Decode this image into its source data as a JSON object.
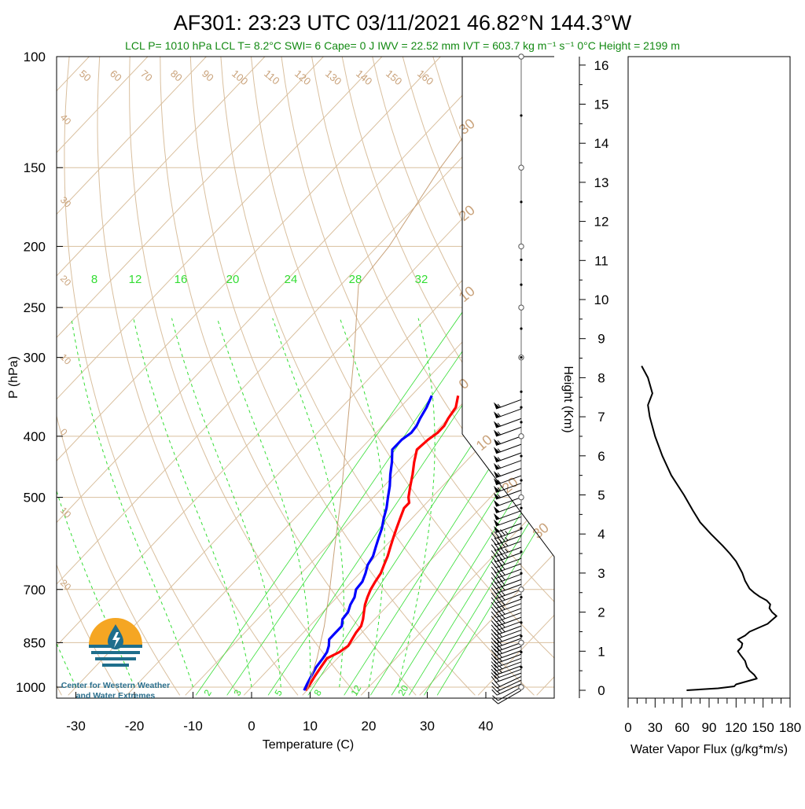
{
  "title": "AF301: 23:23 UTC 03/11/2021  46.82°N 144.3°W",
  "info_line": "LCL P= 1010 hPa  LCL T= 8.2°C  SWI= 6  Cape= 0 J  IWV = 22.52 mm  IVT = 603.7 kg m⁻¹ s⁻¹  0°C Height = 2199 m",
  "logo": {
    "line1": "Center for Western Weather",
    "line2": "and Water Extremes",
    "colors": {
      "orange": "#f5a623",
      "teal": "#1f6e8c"
    }
  },
  "colors": {
    "temperature": "#ff0000",
    "dewpoint": "#0000ff",
    "isotherms_and_adiabats": "#d9bf9e",
    "mixing_ratio": "#33dd33",
    "parcel": "#c9a27a",
    "flux": "#000000"
  },
  "chart_data": [
    {
      "type": "line",
      "subtype": "skew-T log-p",
      "xlabel": "Temperature (C)",
      "ylabel": "P (hPa)",
      "right_label": "Height (Km)",
      "x_ticks": [
        -30,
        -20,
        -10,
        0,
        10,
        20,
        30,
        40
      ],
      "xlim": [
        -33,
        45
      ],
      "y_ticks": [
        100,
        150,
        200,
        250,
        300,
        400,
        500,
        700,
        850,
        1000
      ],
      "ylim": [
        100,
        1030
      ],
      "y_scale": "log",
      "height_ticks_km": [
        0,
        1,
        2,
        3,
        4,
        5,
        6,
        7,
        8,
        9,
        10,
        11,
        12,
        13,
        14,
        15,
        16
      ],
      "dry_adiabat_labels": [
        "50",
        "60",
        "70",
        "80",
        "90",
        "100",
        "110",
        "120",
        "130",
        "140",
        "150",
        "160"
      ],
      "isotherm_labels_left": [
        "40",
        "30",
        "20",
        "10",
        "0",
        "10",
        "20"
      ],
      "isotherm_labels_right": [
        "30",
        "20",
        "10",
        "0",
        "10",
        "20",
        "30"
      ],
      "mixing_ratio_labels_top": [
        "8",
        "12",
        "16",
        "20",
        "24",
        "28",
        "32"
      ],
      "mixing_ratio_labels_bottom": [
        "2",
        "3",
        "5",
        "8",
        "12",
        "20"
      ],
      "series": [
        {
          "name": "Temperature",
          "points": [
            {
              "p": 1012,
              "t": 9.8
            },
            {
              "p": 990,
              "t": 9.5
            },
            {
              "p": 960,
              "t": 9.0
            },
            {
              "p": 930,
              "t": 8.6
            },
            {
              "p": 900,
              "t": 8.2
            },
            {
              "p": 880,
              "t": 9.3
            },
            {
              "p": 860,
              "t": 9.8
            },
            {
              "p": 840,
              "t": 9.4
            },
            {
              "p": 820,
              "t": 9.0
            },
            {
              "p": 800,
              "t": 8.8
            },
            {
              "p": 780,
              "t": 8.0
            },
            {
              "p": 760,
              "t": 7.0
            },
            {
              "p": 740,
              "t": 6.0
            },
            {
              "p": 720,
              "t": 5.2
            },
            {
              "p": 700,
              "t": 4.5
            },
            {
              "p": 680,
              "t": 4.0
            },
            {
              "p": 660,
              "t": 3.6
            },
            {
              "p": 640,
              "t": 2.8
            },
            {
              "p": 620,
              "t": 2.0
            },
            {
              "p": 600,
              "t": 1.0
            },
            {
              "p": 580,
              "t": 0.0
            },
            {
              "p": 560,
              "t": -1.0
            },
            {
              "p": 540,
              "t": -2.0
            },
            {
              "p": 520,
              "t": -3.0
            },
            {
              "p": 510,
              "t": -3.0
            },
            {
              "p": 500,
              "t": -4.0
            },
            {
              "p": 480,
              "t": -5.5
            },
            {
              "p": 460,
              "t": -7.0
            },
            {
              "p": 440,
              "t": -8.7
            },
            {
              "p": 420,
              "t": -10.3
            },
            {
              "p": 405,
              "t": -10.0
            },
            {
              "p": 395,
              "t": -9.5
            },
            {
              "p": 385,
              "t": -9.5
            },
            {
              "p": 375,
              "t": -10.0
            },
            {
              "p": 360,
              "t": -10.5
            },
            {
              "p": 345,
              "t": -12.0
            }
          ]
        },
        {
          "name": "Dewpoint",
          "points": [
            {
              "p": 1012,
              "t": 9.5
            },
            {
              "p": 990,
              "t": 9.0
            },
            {
              "p": 960,
              "t": 8.4
            },
            {
              "p": 930,
              "t": 7.8
            },
            {
              "p": 900,
              "t": 7.5
            },
            {
              "p": 880,
              "t": 7.2
            },
            {
              "p": 860,
              "t": 6.5
            },
            {
              "p": 840,
              "t": 5.5
            },
            {
              "p": 820,
              "t": 5.5
            },
            {
              "p": 800,
              "t": 5.5
            },
            {
              "p": 780,
              "t": 4.5
            },
            {
              "p": 760,
              "t": 4.3
            },
            {
              "p": 740,
              "t": 3.5
            },
            {
              "p": 720,
              "t": 3.0
            },
            {
              "p": 700,
              "t": 2.0
            },
            {
              "p": 680,
              "t": 1.8
            },
            {
              "p": 660,
              "t": 1.0
            },
            {
              "p": 640,
              "t": 0.0
            },
            {
              "p": 620,
              "t": -0.5
            },
            {
              "p": 600,
              "t": -1.5
            },
            {
              "p": 580,
              "t": -2.5
            },
            {
              "p": 560,
              "t": -3.5
            },
            {
              "p": 540,
              "t": -4.8
            },
            {
              "p": 520,
              "t": -6.0
            },
            {
              "p": 500,
              "t": -7.5
            },
            {
              "p": 480,
              "t": -9.0
            },
            {
              "p": 460,
              "t": -10.8
            },
            {
              "p": 440,
              "t": -12.5
            },
            {
              "p": 420,
              "t": -14.5
            },
            {
              "p": 405,
              "t": -14.5
            },
            {
              "p": 395,
              "t": -14.0
            },
            {
              "p": 385,
              "t": -14.2
            },
            {
              "p": 375,
              "t": -14.8
            },
            {
              "p": 360,
              "t": -15.5
            },
            {
              "p": 345,
              "t": -16.5
            }
          ]
        },
        {
          "name": "Parcel",
          "points": [
            {
              "p": 1012,
              "t": 10.0
            },
            {
              "p": 900,
              "t": 6.5
            },
            {
              "p": 800,
              "t": 2.5
            },
            {
              "p": 700,
              "t": -2.5
            },
            {
              "p": 600,
              "t": -8.5
            },
            {
              "p": 500,
              "t": -15.5
            },
            {
              "p": 400,
              "t": -24.5
            },
            {
              "p": 300,
              "t": -36.0
            },
            {
              "p": 230,
              "t": -47.0
            },
            {
              "p": 200,
              "t": -48.0
            },
            {
              "p": 150,
              "t": -52.0
            },
            {
              "p": 100,
              "t": -56.0
            }
          ]
        }
      ],
      "wind_barbs": {
        "levels_hpa": [
          1012,
          1000,
          988,
          975,
          962,
          950,
          937,
          925,
          912,
          900,
          887,
          875,
          862,
          850,
          837,
          825,
          812,
          800,
          787,
          775,
          762,
          750,
          737,
          725,
          712,
          700,
          687,
          675,
          662,
          650,
          637,
          625,
          612,
          600,
          587,
          575,
          562,
          550,
          537,
          525,
          512,
          500,
          487,
          475,
          462,
          450,
          437,
          425,
          412,
          400,
          387,
          375,
          362,
          350
        ],
        "speed_knots": [
          10,
          10,
          15,
          15,
          20,
          20,
          20,
          25,
          25,
          25,
          25,
          30,
          30,
          30,
          30,
          30,
          30,
          35,
          35,
          35,
          35,
          35,
          35,
          35,
          35,
          35,
          40,
          40,
          40,
          40,
          40,
          40,
          45,
          45,
          45,
          45,
          45,
          50,
          50,
          50,
          50,
          50,
          55,
          55,
          55,
          55,
          55,
          55,
          55,
          55,
          55,
          55,
          55,
          55
        ],
        "from_direction_deg": [
          240,
          240,
          245,
          245,
          245,
          250,
          250,
          250,
          250,
          250,
          250,
          250,
          250,
          250,
          250,
          250,
          250,
          250,
          250,
          250,
          250,
          250,
          250,
          250,
          250,
          250,
          250,
          250,
          250,
          250,
          250,
          250,
          250,
          250,
          250,
          250,
          250,
          250,
          250,
          250,
          250,
          250,
          250,
          250,
          250,
          250,
          250,
          250,
          250,
          250,
          250,
          250,
          250,
          250
        ]
      }
    },
    {
      "type": "line",
      "xlabel": "Water Vapor Flux (g/kg*m/s)",
      "ylabel": "",
      "x_ticks": [
        0,
        30,
        60,
        90,
        120,
        150,
        180
      ],
      "xlim": [
        0,
        180
      ],
      "ylim_km": [
        -0.1,
        16.5
      ],
      "series": [
        {
          "name": "Water Vapor Flux",
          "points": [
            {
              "km": 0.0,
              "flux": 65
            },
            {
              "km": 0.05,
              "flux": 100
            },
            {
              "km": 0.1,
              "flux": 118
            },
            {
              "km": 0.15,
              "flux": 120
            },
            {
              "km": 0.3,
              "flux": 143
            },
            {
              "km": 0.4,
              "flux": 140
            },
            {
              "km": 0.5,
              "flux": 135
            },
            {
              "km": 0.6,
              "flux": 132
            },
            {
              "km": 0.75,
              "flux": 130
            },
            {
              "km": 0.9,
              "flux": 125
            },
            {
              "km": 1.0,
              "flux": 122
            },
            {
              "km": 1.1,
              "flux": 126
            },
            {
              "km": 1.2,
              "flux": 127
            },
            {
              "km": 1.3,
              "flux": 122
            },
            {
              "km": 1.4,
              "flux": 130
            },
            {
              "km": 1.5,
              "flux": 135
            },
            {
              "km": 1.6,
              "flux": 145
            },
            {
              "km": 1.7,
              "flux": 155
            },
            {
              "km": 1.8,
              "flux": 160
            },
            {
              "km": 1.9,
              "flux": 165
            },
            {
              "km": 2.0,
              "flux": 160
            },
            {
              "km": 2.1,
              "flux": 157
            },
            {
              "km": 2.2,
              "flux": 158
            },
            {
              "km": 2.3,
              "flux": 154
            },
            {
              "km": 2.4,
              "flux": 146
            },
            {
              "km": 2.5,
              "flux": 140
            },
            {
              "km": 2.6,
              "flux": 135
            },
            {
              "km": 2.8,
              "flux": 130
            },
            {
              "km": 3.0,
              "flux": 127
            },
            {
              "km": 3.3,
              "flux": 120
            },
            {
              "km": 3.5,
              "flux": 113
            },
            {
              "km": 3.7,
              "flux": 105
            },
            {
              "km": 4.0,
              "flux": 92
            },
            {
              "km": 4.3,
              "flux": 80
            },
            {
              "km": 4.6,
              "flux": 72
            },
            {
              "km": 5.0,
              "flux": 62
            },
            {
              "km": 5.5,
              "flux": 48
            },
            {
              "km": 6.0,
              "flux": 38
            },
            {
              "km": 6.5,
              "flux": 30
            },
            {
              "km": 7.0,
              "flux": 24
            },
            {
              "km": 7.3,
              "flux": 22
            },
            {
              "km": 7.6,
              "flux": 27
            },
            {
              "km": 8.0,
              "flux": 22
            },
            {
              "km": 8.3,
              "flux": 15
            }
          ]
        }
      ]
    }
  ]
}
